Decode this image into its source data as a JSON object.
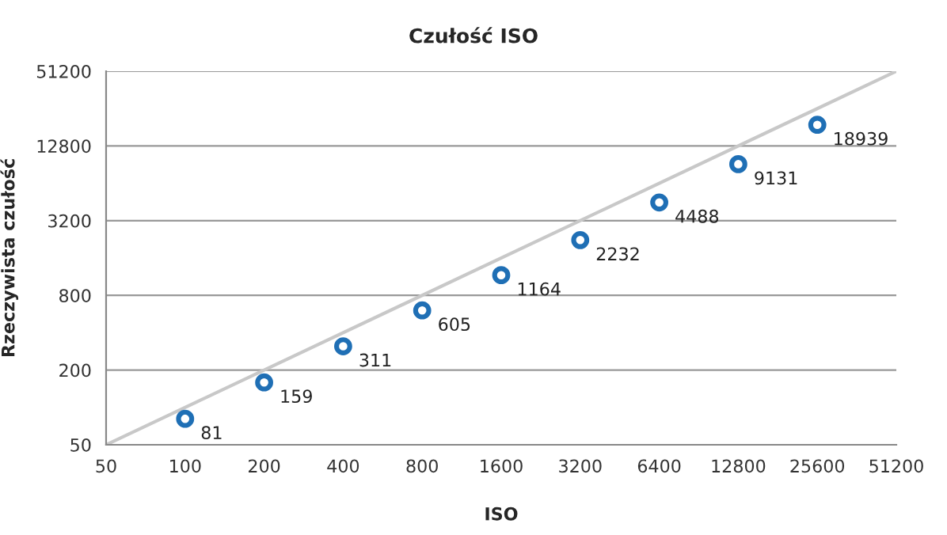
{
  "chart_data": {
    "type": "scatter",
    "title": "Czułość ISO",
    "xlabel": "ISO",
    "ylabel": "Rzeczywista czułość",
    "log": "xy",
    "xlim": [
      50,
      51200
    ],
    "xticks": [
      50,
      100,
      200,
      400,
      800,
      1600,
      3200,
      6400,
      12800,
      25600,
      51200
    ],
    "ylim": [
      50,
      51200
    ],
    "yticks": [
      50,
      200,
      800,
      3200,
      12800,
      51200
    ],
    "grid": "y",
    "marker": "circle",
    "series": [
      {
        "type": "line",
        "color": "#c8c8c8",
        "x": [
          50,
          51200
        ],
        "values": [
          50,
          51200
        ],
        "marker": "none",
        "line_style": "solid"
      },
      {
        "color": "#1f6fb5",
        "x": [
          100,
          200,
          400,
          800,
          1600,
          3200,
          6400,
          12800,
          25600
        ],
        "values": [
          81,
          159,
          311,
          605,
          1164,
          2232,
          4488,
          9131,
          18939
        ],
        "value_labels": [
          "81",
          "159",
          "311",
          "605",
          "1164",
          "2232",
          "4488",
          "9131",
          "18939"
        ]
      }
    ]
  }
}
